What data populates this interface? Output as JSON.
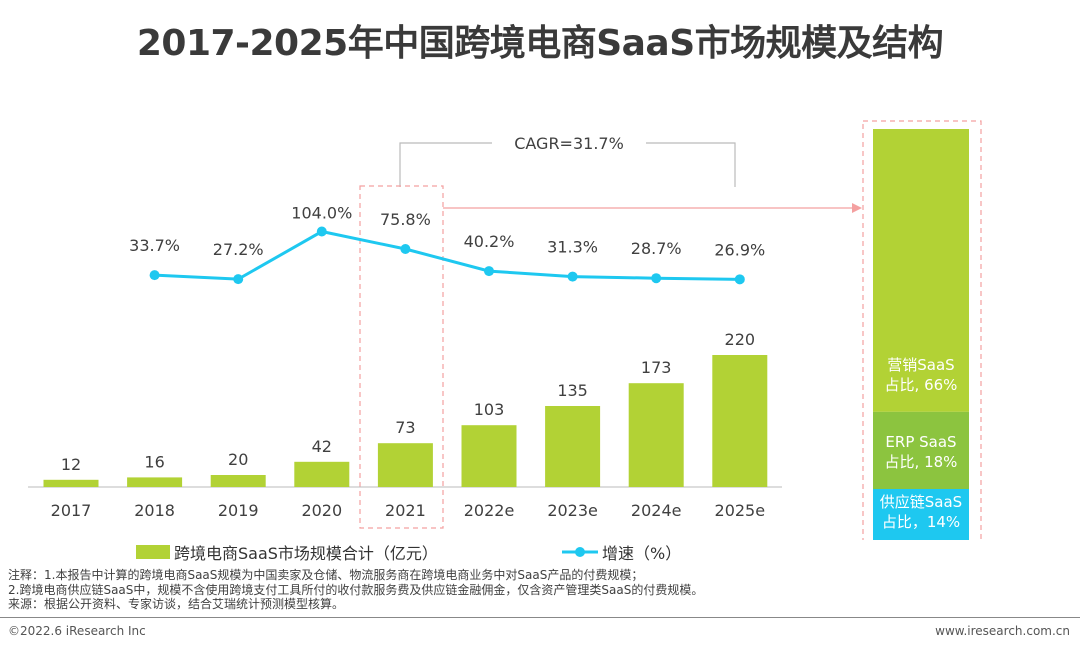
{
  "title": "2017-2025年中国跨境电商SaaS市场规模及结构",
  "chart_data": [
    {
      "type": "bar+line",
      "categories": [
        "2017",
        "2018",
        "2019",
        "2020",
        "2021",
        "2022e",
        "2023e",
        "2024e",
        "2025e"
      ],
      "series": [
        {
          "name": "跨境电商SaaS市场规模合计（亿元）",
          "type": "bar",
          "values": [
            12,
            16,
            20,
            42,
            73,
            103,
            135,
            173,
            220
          ],
          "labels": [
            "12",
            "16",
            "20",
            "42",
            "73",
            "103",
            "135",
            "173",
            "220"
          ],
          "color": "#b2d235"
        },
        {
          "name": "增速（%）",
          "type": "line",
          "values": [
            null,
            33.7,
            27.2,
            104.0,
            75.8,
            40.2,
            31.3,
            28.7,
            26.9
          ],
          "labels": [
            "",
            "33.7%",
            "27.2%",
            "104.0%",
            "75.8%",
            "40.2%",
            "31.3%",
            "28.7%",
            "26.9%"
          ],
          "color": "#1ec8f0"
        }
      ],
      "annotation": "CAGR=31.7%",
      "highlight_category": "2021",
      "legend_placement": "bottom"
    },
    {
      "type": "stacked-bar",
      "category": "2021",
      "segments": [
        {
          "label_line1": "营销SaaS",
          "label_line2": "占比, 66%",
          "value": 66,
          "color": "#b2d235"
        },
        {
          "label_line1": "ERP SaaS",
          "label_line2": "占比, 18%",
          "value": 18,
          "color": "#8cc43f"
        },
        {
          "label_line1": "供应链SaaS",
          "label_line2": "占比，14%",
          "value": 14,
          "color": "#1ec8f0"
        }
      ]
    }
  ],
  "notes": [
    "注释：1.本报告中计算的跨境电商SaaS规模为中国卖家及仓储、物流服务商在跨境电商业务中对SaaS产品的付费规模；",
    "2.跨境电商供应链SaaS中，规模不含使用跨境支付工具所付的收付款服务费及供应链金融佣金，仅含资产管理类SaaS的付费规模。",
    "来源：根据公开资料、专家访谈，结合艾瑞统计预测模型核算。"
  ],
  "footer": {
    "copyright": "©2022.6 iResearch Inc",
    "website": "www.iresearch.com.cn"
  }
}
